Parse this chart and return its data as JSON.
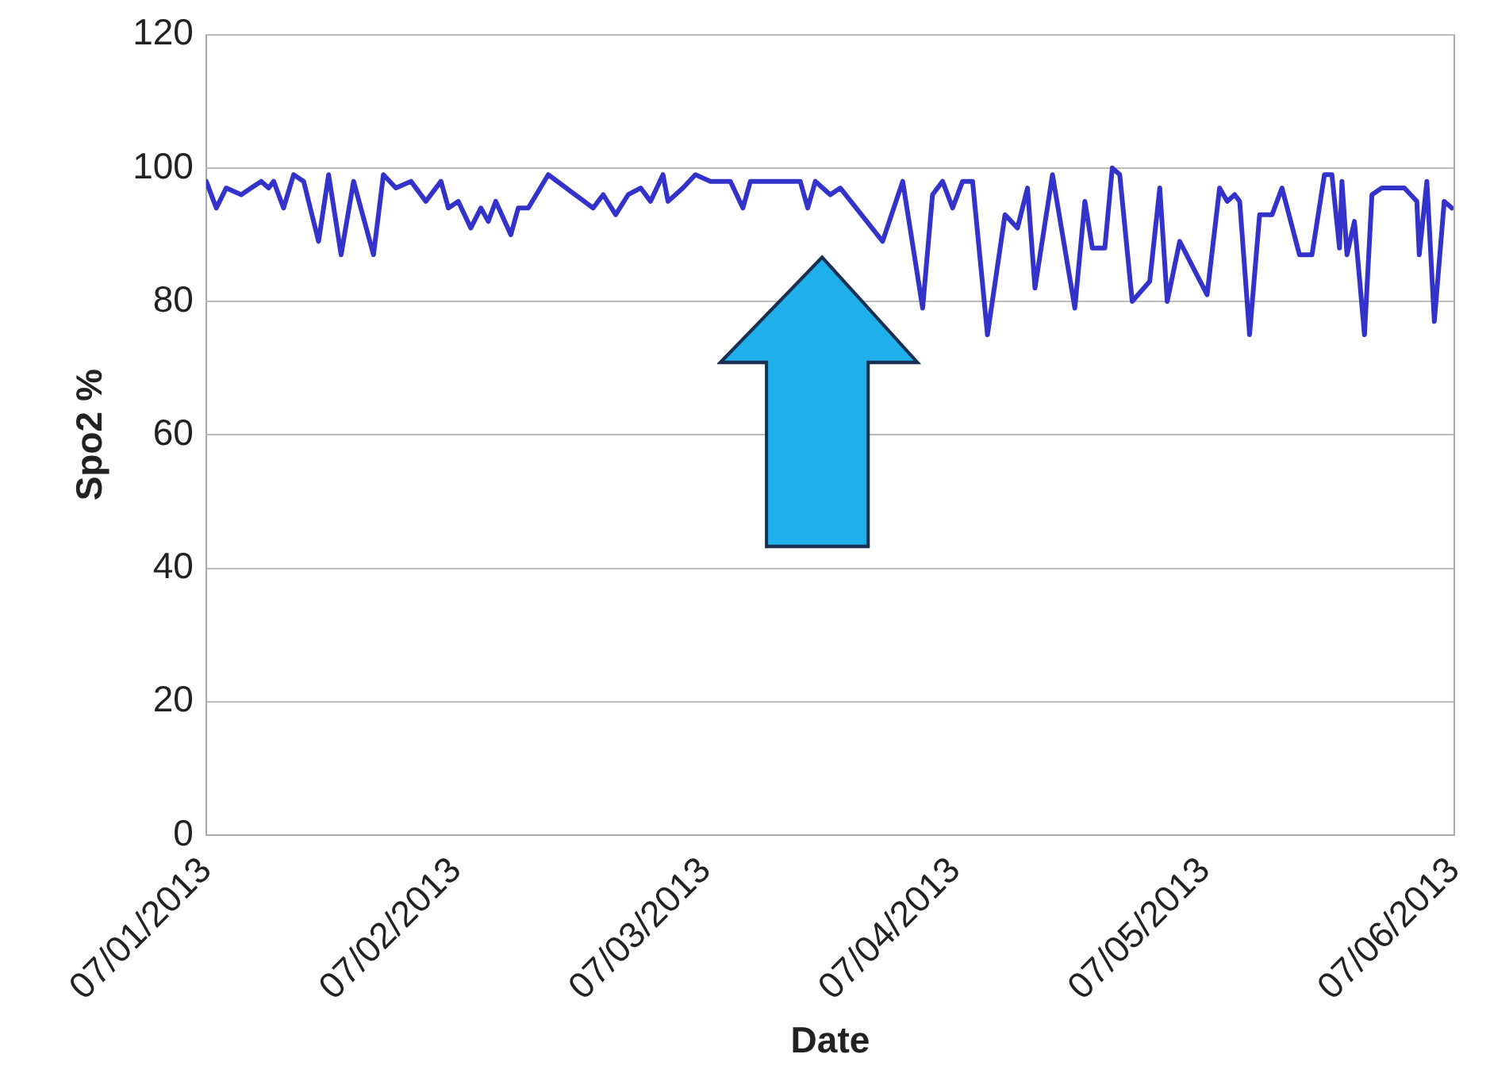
{
  "chart_data": {
    "type": "line",
    "xlabel": "Date",
    "ylabel": "Spo2 %",
    "ylim": [
      0,
      120
    ],
    "yticks": [
      0,
      20,
      40,
      60,
      80,
      100,
      120
    ],
    "xlim": [
      "2013-07-01",
      "2013-07-06"
    ],
    "xticks": [
      {
        "value": "2013-07-01",
        "label": "07/01/2013"
      },
      {
        "value": "2013-07-02",
        "label": "07/02/2013"
      },
      {
        "value": "2013-07-03",
        "label": "07/03/2013"
      },
      {
        "value": "2013-07-04",
        "label": "07/04/2013"
      },
      {
        "value": "2013-07-05",
        "label": "07/05/2013"
      },
      {
        "value": "2013-07-06",
        "label": "07/06/2013"
      }
    ],
    "grid": "y",
    "legend": false,
    "marker": "none",
    "line_style": "solid",
    "series": [
      {
        "color": "#3333cc",
        "x": [
          "2013-07-01T00:00",
          "2013-07-01T00:58",
          "2013-07-01T01:55",
          "2013-07-01T03:22",
          "2013-07-01T04:19",
          "2013-07-01T05:17",
          "2013-07-01T06:00",
          "2013-07-01T06:29",
          "2013-07-01T07:26",
          "2013-07-01T08:24",
          "2013-07-01T09:22",
          "2013-07-01T10:48",
          "2013-07-01T11:46",
          "2013-07-01T12:58",
          "2013-07-01T14:10",
          "2013-07-01T16:05",
          "2013-07-01T17:02",
          "2013-07-01T18:14",
          "2013-07-01T19:41",
          "2013-07-01T21:07",
          "2013-07-01T22:34",
          "2013-07-01T23:17",
          "2013-07-02T00:14",
          "2013-07-02T01:26",
          "2013-07-02T02:24",
          "2013-07-02T03:07",
          "2013-07-02T03:50",
          "2013-07-02T05:17",
          "2013-07-02T06:00",
          "2013-07-02T06:58",
          "2013-07-02T08:53",
          "2013-07-02T13:12",
          "2013-07-02T14:10",
          "2013-07-02T15:22",
          "2013-07-02T16:34",
          "2013-07-02T17:46",
          "2013-07-02T18:43",
          "2013-07-02T19:55",
          "2013-07-02T20:24",
          "2013-07-02T21:50",
          "2013-07-02T23:02",
          "2013-07-03T00:29",
          "2013-07-03T02:24",
          "2013-07-03T03:36",
          "2013-07-03T04:19",
          "2013-07-03T09:07",
          "2013-07-03T09:50",
          "2013-07-03T10:34",
          "2013-07-03T12:00",
          "2013-07-03T12:58",
          "2013-07-03T17:02",
          "2013-07-03T18:58",
          "2013-07-03T20:53",
          "2013-07-03T21:50",
          "2013-07-03T22:48",
          "2013-07-03T23:46",
          "2013-07-04T00:43",
          "2013-07-04T01:41",
          "2013-07-04T03:07",
          "2013-07-04T04:48",
          "2013-07-04T06:00",
          "2013-07-04T06:58",
          "2013-07-04T07:41",
          "2013-07-04T09:22",
          "2013-07-04T11:31",
          "2013-07-04T12:29",
          "2013-07-04T13:12",
          "2013-07-04T14:24",
          "2013-07-04T15:07",
          "2013-07-04T15:50",
          "2013-07-04T17:02",
          "2013-07-04T18:43",
          "2013-07-04T19:41",
          "2013-07-04T20:24",
          "2013-07-04T21:36",
          "2013-07-05T00:14",
          "2013-07-05T01:26",
          "2013-07-05T02:10",
          "2013-07-05T02:53",
          "2013-07-05T03:22",
          "2013-07-05T04:19",
          "2013-07-05T05:17",
          "2013-07-05T06:29",
          "2013-07-05T07:26",
          "2013-07-05T09:07",
          "2013-07-05T10:19",
          "2013-07-05T11:31",
          "2013-07-05T12:14",
          "2013-07-05T12:58",
          "2013-07-05T13:12",
          "2013-07-05T13:41",
          "2013-07-05T14:24",
          "2013-07-05T15:22",
          "2013-07-05T16:05",
          "2013-07-05T17:02",
          "2013-07-05T19:12",
          "2013-07-05T20:24",
          "2013-07-05T20:38",
          "2013-07-05T21:22",
          "2013-07-05T22:05",
          "2013-07-05T23:02",
          "2013-07-05T23:46"
        ],
        "values": [
          98,
          94,
          97,
          96,
          97,
          98,
          97,
          98,
          94,
          99,
          98,
          89,
          99,
          87,
          98,
          87,
          99,
          97,
          98,
          95,
          98,
          94,
          95,
          91,
          94,
          92,
          95,
          90,
          94,
          94,
          99,
          94,
          96,
          93,
          96,
          97,
          95,
          99,
          95,
          97,
          99,
          98,
          98,
          94,
          98,
          98,
          94,
          98,
          96,
          97,
          89,
          98,
          79,
          96,
          98,
          94,
          98,
          98,
          75,
          93,
          91,
          97,
          82,
          99,
          79,
          95,
          88,
          88,
          100,
          99,
          80,
          83,
          97,
          80,
          89,
          81,
          97,
          95,
          96,
          95,
          75,
          93,
          93,
          97,
          87,
          87,
          99,
          99,
          88,
          98,
          87,
          92,
          75,
          96,
          97,
          97,
          95,
          87,
          98,
          77,
          95,
          94
        ]
      }
    ]
  }
}
